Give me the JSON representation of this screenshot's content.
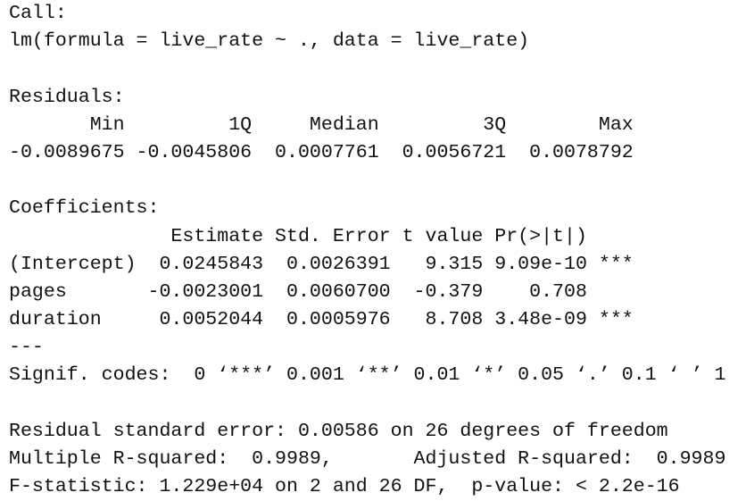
{
  "call": {
    "label": "Call:",
    "formula": "lm(formula = live_rate ~ ., data = live_rate)"
  },
  "residuals": {
    "label": "Residuals:",
    "header": "       Min         1Q     Median         3Q        Max",
    "values": "-0.0089675 -0.0045806  0.0007761  0.0056721  0.0078792"
  },
  "coefficients": {
    "label": "Coefficients:",
    "header": "              Estimate Std. Error t value Pr(>|t|)",
    "rows": [
      "(Intercept)  0.0245843  0.0026391   9.315 9.09e-10 ***",
      "pages       -0.0023001  0.0060700  -0.379    0.708",
      "duration     0.0052044  0.0005976   8.708 3.48e-09 ***"
    ],
    "separator": "---",
    "signif": "Signif. codes:  0 ‘***’ 0.001 ‘**’ 0.01 ‘*’ 0.05 ‘.’ 0.1 ‘ ’ 1"
  },
  "summary": [
    "Residual standard error: 0.00586 on 26 degrees of freedom",
    "Multiple R-squared:  0.9989,\tAdjusted R-squared:  0.9989 ",
    "F-statistic: 1.229e+04 on 2 and 26 DF,  p-value: < 2.2e-16"
  ]
}
